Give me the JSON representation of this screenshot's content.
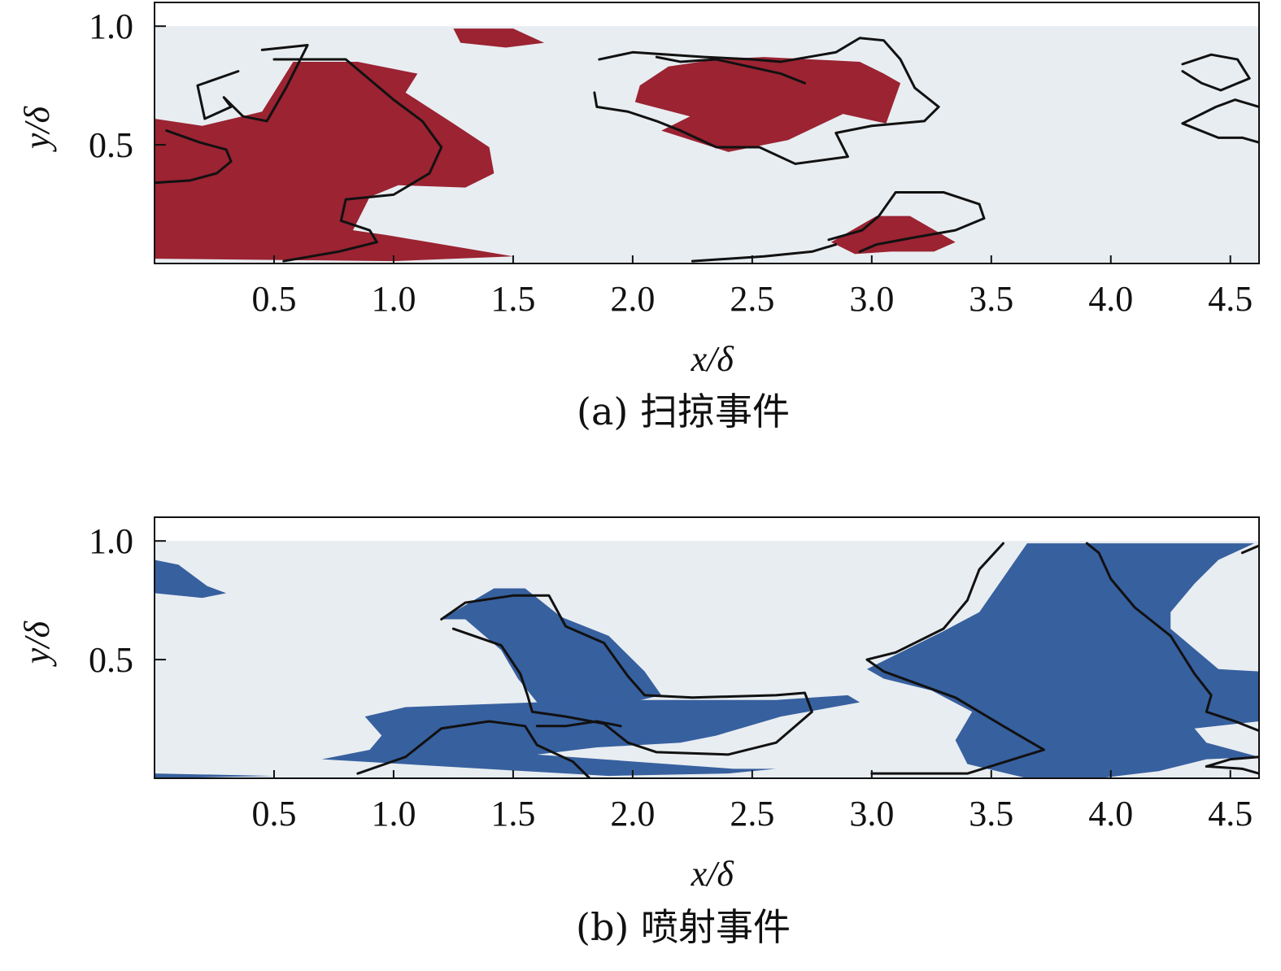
{
  "chart_data": [
    {
      "type": "heatmap",
      "panel": "a",
      "caption": "(a) 扫掠事件",
      "xlabel": "x/δ",
      "ylabel": "y/δ",
      "xlim": [
        0.0,
        4.62
      ],
      "ylim": [
        0.0,
        1.1
      ],
      "plot_extent": [
        0.0,
        4.62,
        0.0,
        1.0
      ],
      "xticks": [
        0.5,
        1.0,
        1.5,
        2.0,
        2.5,
        3.0,
        3.5,
        4.0,
        4.5
      ],
      "xtick_labels": [
        "0.5",
        "1.0",
        "1.5",
        "2.0",
        "2.5",
        "3.0",
        "3.5",
        "4.0",
        "4.5"
      ],
      "yticks": [
        0.5,
        1.0
      ],
      "ytick_labels": [
        "0.5",
        "1.0"
      ],
      "background_color": "#e8edf1",
      "fill_color": "#9b2332",
      "contour_color": "#111111",
      "grid": false,
      "filled_regions": [
        [
          [
            0.0,
            0.61
          ],
          [
            0.2,
            0.58
          ],
          [
            0.45,
            0.64
          ],
          [
            0.58,
            0.85
          ],
          [
            0.85,
            0.85
          ],
          [
            1.1,
            0.8
          ],
          [
            1.05,
            0.72
          ],
          [
            1.25,
            0.59
          ],
          [
            1.4,
            0.49
          ],
          [
            1.42,
            0.38
          ],
          [
            1.3,
            0.32
          ],
          [
            1.02,
            0.33
          ],
          [
            0.9,
            0.28
          ],
          [
            0.83,
            0.14
          ],
          [
            0.97,
            0.12
          ],
          [
            1.5,
            0.03
          ],
          [
            1.0,
            0.01
          ],
          [
            0.0,
            0.02
          ]
        ],
        [
          [
            1.25,
            0.99
          ],
          [
            1.5,
            0.99
          ],
          [
            1.63,
            0.93
          ],
          [
            1.47,
            0.91
          ],
          [
            1.28,
            0.93
          ]
        ],
        [
          [
            2.03,
            0.75
          ],
          [
            2.15,
            0.83
          ],
          [
            2.35,
            0.86
          ],
          [
            2.55,
            0.87
          ],
          [
            2.95,
            0.85
          ],
          [
            3.05,
            0.8
          ],
          [
            3.12,
            0.76
          ],
          [
            3.06,
            0.59
          ],
          [
            2.88,
            0.63
          ],
          [
            2.65,
            0.52
          ],
          [
            2.4,
            0.47
          ],
          [
            2.12,
            0.56
          ],
          [
            2.24,
            0.62
          ],
          [
            2.01,
            0.68
          ]
        ],
        [
          [
            2.83,
            0.09
          ],
          [
            3.02,
            0.2
          ],
          [
            3.16,
            0.2
          ],
          [
            3.35,
            0.09
          ],
          [
            3.26,
            0.05
          ],
          [
            3.08,
            0.05
          ],
          [
            2.93,
            0.04
          ]
        ]
      ],
      "contours": [
        [
          [
            0.5,
            0.86
          ],
          [
            0.8,
            0.86
          ],
          [
            1.0,
            0.69
          ],
          [
            1.12,
            0.6
          ],
          [
            1.2,
            0.49
          ],
          [
            1.15,
            0.38
          ],
          [
            1.0,
            0.29
          ],
          [
            0.8,
            0.27
          ],
          [
            0.78,
            0.18
          ],
          [
            0.9,
            0.14
          ],
          [
            0.93,
            0.09
          ],
          [
            0.77,
            0.05
          ],
          [
            0.54,
            0.01
          ]
        ],
        [
          [
            0.45,
            0.9
          ],
          [
            0.64,
            0.92
          ],
          [
            0.55,
            0.74
          ],
          [
            0.47,
            0.6
          ],
          [
            0.37,
            0.62
          ],
          [
            0.29,
            0.7
          ],
          [
            0.32,
            0.66
          ],
          [
            0.21,
            0.61
          ],
          [
            0.18,
            0.75
          ],
          [
            0.35,
            0.81
          ]
        ],
        [
          [
            0.0,
            0.34
          ],
          [
            0.15,
            0.35
          ],
          [
            0.26,
            0.38
          ],
          [
            0.32,
            0.43
          ],
          [
            0.3,
            0.48
          ],
          [
            0.19,
            0.51
          ],
          [
            0.05,
            0.56
          ]
        ],
        [
          [
            1.86,
            0.86
          ],
          [
            2.0,
            0.89
          ],
          [
            2.3,
            0.87
          ],
          [
            2.5,
            0.86
          ],
          [
            2.62,
            0.85
          ],
          [
            2.85,
            0.89
          ],
          [
            2.95,
            0.95
          ],
          [
            3.05,
            0.94
          ],
          [
            3.12,
            0.86
          ],
          [
            3.18,
            0.74
          ],
          [
            3.28,
            0.66
          ],
          [
            3.22,
            0.6
          ],
          [
            3.0,
            0.58
          ],
          [
            2.85,
            0.55
          ],
          [
            2.9,
            0.45
          ],
          [
            2.68,
            0.42
          ],
          [
            2.53,
            0.49
          ],
          [
            2.35,
            0.49
          ],
          [
            2.2,
            0.56
          ],
          [
            2.1,
            0.6
          ],
          [
            1.98,
            0.64
          ],
          [
            1.85,
            0.66
          ],
          [
            1.84,
            0.72
          ]
        ],
        [
          [
            2.1,
            0.87
          ],
          [
            2.2,
            0.85
          ],
          [
            2.35,
            0.86
          ],
          [
            2.62,
            0.8
          ],
          [
            2.72,
            0.76
          ]
        ],
        [
          [
            2.82,
            0.1
          ],
          [
            2.96,
            0.14
          ],
          [
            3.03,
            0.2
          ],
          [
            3.1,
            0.3
          ],
          [
            3.3,
            0.3
          ],
          [
            3.45,
            0.25
          ],
          [
            3.47,
            0.19
          ],
          [
            3.35,
            0.14
          ],
          [
            3.18,
            0.11
          ],
          [
            3.02,
            0.08
          ],
          [
            2.95,
            0.05
          ]
        ],
        [
          [
            2.25,
            0.01
          ],
          [
            2.55,
            0.03
          ],
          [
            2.75,
            0.05
          ],
          [
            2.85,
            0.08
          ]
        ],
        [
          [
            4.3,
            0.84
          ],
          [
            4.42,
            0.88
          ],
          [
            4.53,
            0.86
          ],
          [
            4.58,
            0.78
          ],
          [
            4.46,
            0.73
          ],
          [
            4.38,
            0.76
          ],
          [
            4.3,
            0.81
          ]
        ],
        [
          [
            4.3,
            0.59
          ],
          [
            4.44,
            0.66
          ],
          [
            4.52,
            0.69
          ],
          [
            4.62,
            0.66
          ]
        ],
        [
          [
            4.3,
            0.59
          ],
          [
            4.45,
            0.53
          ],
          [
            4.55,
            0.53
          ],
          [
            4.62,
            0.51
          ]
        ]
      ]
    },
    {
      "type": "heatmap",
      "panel": "b",
      "caption": "(b) 喷射事件",
      "xlabel": "x/δ",
      "ylabel": "y/δ",
      "xlim": [
        0.0,
        4.62
      ],
      "ylim": [
        0.0,
        1.1
      ],
      "plot_extent": [
        0.0,
        4.62,
        0.0,
        1.0
      ],
      "xticks": [
        0.5,
        1.0,
        1.5,
        2.0,
        2.5,
        3.0,
        3.5,
        4.0,
        4.5
      ],
      "xtick_labels": [
        "0.5",
        "1.0",
        "1.5",
        "2.0",
        "2.5",
        "3.0",
        "3.5",
        "4.0",
        "4.5"
      ],
      "yticks": [
        0.5,
        1.0
      ],
      "ytick_labels": [
        "0.5",
        "1.0"
      ],
      "background_color": "#e8edf1",
      "fill_color": "#37609f",
      "contour_color": "#111111",
      "grid": false,
      "filled_regions": [
        [
          [
            0.0,
            0.92
          ],
          [
            0.1,
            0.9
          ],
          [
            0.22,
            0.81
          ],
          [
            0.3,
            0.78
          ],
          [
            0.2,
            0.76
          ],
          [
            0.0,
            0.78
          ]
        ],
        [
          [
            0.0,
            0.02
          ],
          [
            0.5,
            0.01
          ],
          [
            0.0,
            0.0
          ]
        ],
        [
          [
            1.2,
            0.67
          ],
          [
            1.42,
            0.8
          ],
          [
            1.55,
            0.8
          ],
          [
            1.7,
            0.68
          ],
          [
            1.9,
            0.6
          ],
          [
            2.05,
            0.45
          ],
          [
            2.12,
            0.35
          ],
          [
            1.95,
            0.31
          ],
          [
            1.6,
            0.32
          ],
          [
            1.52,
            0.42
          ],
          [
            1.45,
            0.54
          ],
          [
            1.3,
            0.67
          ]
        ],
        [
          [
            0.88,
            0.26
          ],
          [
            1.05,
            0.3
          ],
          [
            1.6,
            0.32
          ],
          [
            2.05,
            0.33
          ],
          [
            2.6,
            0.33
          ],
          [
            2.9,
            0.35
          ],
          [
            2.95,
            0.32
          ],
          [
            2.62,
            0.26
          ],
          [
            2.35,
            0.18
          ],
          [
            2.2,
            0.15
          ],
          [
            1.85,
            0.13
          ],
          [
            1.6,
            0.1
          ],
          [
            2.42,
            0.04
          ],
          [
            2.6,
            0.04
          ],
          [
            2.4,
            0.02
          ],
          [
            1.9,
            0.01
          ],
          [
            1.55,
            0.03
          ],
          [
            0.7,
            0.08
          ],
          [
            0.9,
            0.12
          ],
          [
            0.95,
            0.18
          ]
        ],
        [
          [
            3.1,
            0.52
          ],
          [
            3.3,
            0.62
          ],
          [
            3.45,
            0.7
          ],
          [
            3.65,
            0.99
          ],
          [
            4.6,
            0.99
          ],
          [
            4.45,
            0.92
          ],
          [
            4.35,
            0.82
          ],
          [
            4.25,
            0.7
          ],
          [
            4.25,
            0.63
          ],
          [
            4.45,
            0.46
          ],
          [
            4.62,
            0.45
          ],
          [
            4.62,
            0.24
          ],
          [
            4.35,
            0.21
          ],
          [
            4.4,
            0.15
          ],
          [
            4.62,
            0.09
          ],
          [
            4.4,
            0.08
          ],
          [
            4.2,
            0.03
          ],
          [
            3.95,
            0.0
          ],
          [
            3.65,
            0.0
          ],
          [
            3.4,
            0.06
          ],
          [
            3.35,
            0.16
          ],
          [
            3.42,
            0.28
          ],
          [
            3.25,
            0.37
          ],
          [
            3.05,
            0.42
          ],
          [
            2.98,
            0.46
          ]
        ]
      ],
      "contours": [
        [
          [
            1.2,
            0.67
          ],
          [
            1.3,
            0.74
          ],
          [
            1.5,
            0.77
          ],
          [
            1.65,
            0.77
          ],
          [
            1.72,
            0.64
          ],
          [
            1.88,
            0.57
          ],
          [
            1.98,
            0.43
          ],
          [
            2.05,
            0.35
          ],
          [
            2.25,
            0.34
          ],
          [
            2.6,
            0.35
          ],
          [
            2.72,
            0.36
          ],
          [
            2.75,
            0.28
          ],
          [
            2.6,
            0.15
          ],
          [
            2.4,
            0.1
          ],
          [
            2.1,
            0.11
          ],
          [
            1.98,
            0.15
          ],
          [
            1.88,
            0.23
          ],
          [
            1.72,
            0.26
          ],
          [
            1.58,
            0.28
          ],
          [
            1.56,
            0.35
          ],
          [
            1.53,
            0.44
          ],
          [
            1.45,
            0.56
          ],
          [
            1.25,
            0.63
          ]
        ],
        [
          [
            0.85,
            0.02
          ],
          [
            1.05,
            0.09
          ],
          [
            1.2,
            0.21
          ],
          [
            1.4,
            0.24
          ],
          [
            1.55,
            0.22
          ],
          [
            1.6,
            0.14
          ],
          [
            1.75,
            0.07
          ],
          [
            1.82,
            0.0
          ]
        ],
        [
          [
            1.6,
            0.22
          ],
          [
            1.72,
            0.22
          ],
          [
            1.85,
            0.24
          ],
          [
            1.95,
            0.22
          ]
        ],
        [
          [
            3.55,
            0.99
          ],
          [
            3.45,
            0.88
          ],
          [
            3.4,
            0.75
          ],
          [
            3.3,
            0.63
          ],
          [
            3.1,
            0.53
          ],
          [
            2.98,
            0.5
          ],
          [
            3.05,
            0.45
          ],
          [
            3.35,
            0.34
          ],
          [
            3.55,
            0.22
          ],
          [
            3.72,
            0.12
          ],
          [
            3.4,
            0.02
          ],
          [
            3.0,
            0.02
          ]
        ],
        [
          [
            3.9,
            0.99
          ],
          [
            3.95,
            0.95
          ],
          [
            4.0,
            0.84
          ],
          [
            4.1,
            0.72
          ],
          [
            4.25,
            0.6
          ],
          [
            4.3,
            0.52
          ],
          [
            4.35,
            0.44
          ],
          [
            4.42,
            0.35
          ],
          [
            4.4,
            0.28
          ],
          [
            4.52,
            0.24
          ],
          [
            4.62,
            0.2
          ]
        ],
        [
          [
            4.55,
            0.95
          ],
          [
            4.62,
            0.98
          ]
        ],
        [
          [
            4.4,
            0.05
          ],
          [
            4.5,
            0.08
          ],
          [
            4.62,
            0.09
          ]
        ],
        [
          [
            4.4,
            0.05
          ],
          [
            4.55,
            0.04
          ],
          [
            4.62,
            0.02
          ]
        ]
      ]
    }
  ]
}
